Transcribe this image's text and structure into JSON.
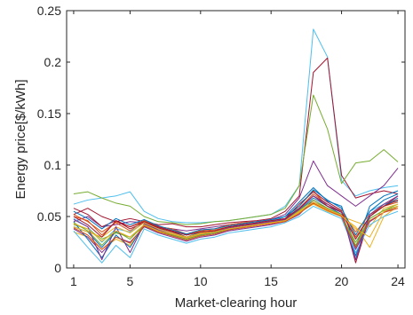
{
  "chart_data": {
    "type": "line",
    "title": "",
    "xlabel": "Market-clearing hour",
    "ylabel": "Energy price[$/kWh]",
    "xlim": [
      0.5,
      24.5
    ],
    "ylim": [
      0,
      0.25
    ],
    "xticks": [
      1,
      5,
      10,
      15,
      20,
      24
    ],
    "xtick_labels": [
      "1",
      "5",
      "10",
      "15",
      "20",
      "24"
    ],
    "yticks": [
      0,
      0.05,
      0.1,
      0.15,
      0.2,
      0.25
    ],
    "ytick_labels": [
      "0",
      "0.05",
      "0.1",
      "0.15",
      "0.2",
      "0.25"
    ],
    "grid": false,
    "legend": "none",
    "x": [
      1,
      2,
      3,
      4,
      5,
      6,
      7,
      8,
      9,
      10,
      11,
      12,
      13,
      14,
      15,
      16,
      17,
      18,
      19,
      20,
      21,
      22,
      23,
      24
    ],
    "series": [
      {
        "color": "#4DBEEE",
        "values": [
          0.062,
          0.066,
          0.068,
          0.07,
          0.074,
          0.055,
          0.048,
          0.045,
          0.044,
          0.044,
          0.045,
          0.046,
          0.048,
          0.05,
          0.052,
          0.06,
          0.08,
          0.232,
          0.205,
          0.085,
          0.07,
          0.075,
          0.078,
          0.08
        ]
      },
      {
        "color": "#A2142F",
        "values": [
          0.052,
          0.058,
          0.05,
          0.045,
          0.048,
          0.045,
          0.042,
          0.043,
          0.04,
          0.04,
          0.042,
          0.044,
          0.045,
          0.046,
          0.048,
          0.055,
          0.07,
          0.19,
          0.204,
          0.09,
          0.068,
          0.072,
          0.075,
          0.072
        ]
      },
      {
        "color": "#77AC30",
        "values": [
          0.072,
          0.074,
          0.068,
          0.063,
          0.06,
          0.05,
          0.045,
          0.044,
          0.042,
          0.043,
          0.045,
          0.046,
          0.048,
          0.05,
          0.052,
          0.058,
          0.08,
          0.168,
          0.135,
          0.082,
          0.102,
          0.104,
          0.115,
          0.103
        ]
      },
      {
        "color": "#7E2F8E",
        "values": [
          0.045,
          0.05,
          0.04,
          0.042,
          0.045,
          0.044,
          0.04,
          0.038,
          0.036,
          0.038,
          0.04,
          0.042,
          0.044,
          0.045,
          0.047,
          0.052,
          0.068,
          0.104,
          0.08,
          0.07,
          0.06,
          0.07,
          0.08,
          0.097
        ]
      },
      {
        "color": "#0072BD",
        "values": [
          0.04,
          0.035,
          0.02,
          0.035,
          0.03,
          0.042,
          0.038,
          0.036,
          0.03,
          0.035,
          0.036,
          0.04,
          0.042,
          0.043,
          0.045,
          0.05,
          0.064,
          0.078,
          0.065,
          0.06,
          0.02,
          0.06,
          0.07,
          0.075
        ]
      },
      {
        "color": "#D95319",
        "values": [
          0.05,
          0.046,
          0.032,
          0.045,
          0.04,
          0.046,
          0.04,
          0.038,
          0.033,
          0.037,
          0.038,
          0.042,
          0.044,
          0.045,
          0.046,
          0.048,
          0.06,
          0.075,
          0.06,
          0.055,
          0.03,
          0.05,
          0.062,
          0.066
        ]
      },
      {
        "color": "#EDB120",
        "values": [
          0.035,
          0.03,
          0.018,
          0.028,
          0.022,
          0.04,
          0.035,
          0.032,
          0.028,
          0.032,
          0.034,
          0.038,
          0.04,
          0.042,
          0.044,
          0.046,
          0.055,
          0.062,
          0.055,
          0.05,
          0.04,
          0.02,
          0.05,
          0.06
        ]
      },
      {
        "color": "#4DBEEE",
        "values": [
          0.048,
          0.04,
          0.025,
          0.038,
          0.035,
          0.044,
          0.038,
          0.034,
          0.03,
          0.034,
          0.036,
          0.04,
          0.042,
          0.044,
          0.046,
          0.05,
          0.058,
          0.07,
          0.062,
          0.055,
          0.01,
          0.055,
          0.062,
          0.065
        ]
      },
      {
        "color": "#A2142F",
        "values": [
          0.058,
          0.052,
          0.04,
          0.046,
          0.038,
          0.044,
          0.039,
          0.035,
          0.03,
          0.034,
          0.035,
          0.04,
          0.042,
          0.043,
          0.044,
          0.048,
          0.062,
          0.074,
          0.064,
          0.056,
          0.005,
          0.05,
          0.06,
          0.07
        ]
      },
      {
        "color": "#77AC30",
        "values": [
          0.042,
          0.038,
          0.028,
          0.034,
          0.03,
          0.04,
          0.036,
          0.032,
          0.03,
          0.033,
          0.035,
          0.038,
          0.04,
          0.042,
          0.044,
          0.046,
          0.054,
          0.064,
          0.058,
          0.05,
          0.025,
          0.048,
          0.056,
          0.062
        ]
      },
      {
        "color": "#7E2F8E",
        "values": [
          0.038,
          0.03,
          0.015,
          0.03,
          0.025,
          0.04,
          0.034,
          0.03,
          0.026,
          0.03,
          0.032,
          0.036,
          0.038,
          0.04,
          0.042,
          0.045,
          0.052,
          0.066,
          0.058,
          0.05,
          0.018,
          0.045,
          0.054,
          0.06
        ]
      },
      {
        "color": "#0072BD",
        "values": [
          0.045,
          0.028,
          0.01,
          0.032,
          0.02,
          0.042,
          0.036,
          0.032,
          0.028,
          0.032,
          0.034,
          0.037,
          0.04,
          0.042,
          0.044,
          0.046,
          0.056,
          0.068,
          0.06,
          0.052,
          0.012,
          0.05,
          0.06,
          0.068
        ]
      },
      {
        "color": "#D95319",
        "values": [
          0.052,
          0.045,
          0.035,
          0.044,
          0.036,
          0.046,
          0.04,
          0.036,
          0.032,
          0.036,
          0.037,
          0.04,
          0.042,
          0.043,
          0.045,
          0.047,
          0.058,
          0.072,
          0.062,
          0.055,
          0.035,
          0.052,
          0.06,
          0.064
        ]
      },
      {
        "color": "#EDB120",
        "values": [
          0.04,
          0.035,
          0.03,
          0.04,
          0.034,
          0.044,
          0.038,
          0.034,
          0.03,
          0.034,
          0.036,
          0.039,
          0.041,
          0.042,
          0.044,
          0.046,
          0.054,
          0.062,
          0.056,
          0.05,
          0.045,
          0.04,
          0.058,
          0.062
        ]
      },
      {
        "color": "#4DBEEE",
        "values": [
          0.036,
          0.02,
          0.005,
          0.022,
          0.01,
          0.038,
          0.032,
          0.028,
          0.024,
          0.028,
          0.03,
          0.034,
          0.036,
          0.038,
          0.04,
          0.044,
          0.05,
          0.06,
          0.054,
          0.048,
          0.015,
          0.042,
          0.05,
          0.055
        ]
      },
      {
        "color": "#A2142F",
        "values": [
          0.05,
          0.042,
          0.03,
          0.046,
          0.04,
          0.045,
          0.04,
          0.036,
          0.032,
          0.035,
          0.036,
          0.04,
          0.042,
          0.044,
          0.046,
          0.048,
          0.058,
          0.07,
          0.06,
          0.054,
          0.028,
          0.05,
          0.06,
          0.066
        ]
      },
      {
        "color": "#77AC30",
        "values": [
          0.044,
          0.036,
          0.022,
          0.036,
          0.028,
          0.042,
          0.036,
          0.032,
          0.028,
          0.032,
          0.034,
          0.038,
          0.04,
          0.042,
          0.044,
          0.046,
          0.056,
          0.066,
          0.058,
          0.052,
          0.022,
          0.048,
          0.056,
          0.06
        ]
      },
      {
        "color": "#7E2F8E",
        "values": [
          0.047,
          0.04,
          0.008,
          0.04,
          0.015,
          0.043,
          0.037,
          0.033,
          0.029,
          0.033,
          0.035,
          0.039,
          0.041,
          0.043,
          0.045,
          0.047,
          0.057,
          0.07,
          0.062,
          0.054,
          0.008,
          0.052,
          0.062,
          0.07
        ]
      },
      {
        "color": "#0072BD",
        "values": [
          0.055,
          0.048,
          0.038,
          0.048,
          0.042,
          0.047,
          0.041,
          0.037,
          0.033,
          0.037,
          0.038,
          0.041,
          0.043,
          0.045,
          0.047,
          0.05,
          0.06,
          0.076,
          0.066,
          0.058,
          0.032,
          0.055,
          0.066,
          0.072
        ]
      },
      {
        "color": "#D95319",
        "values": [
          0.039,
          0.032,
          0.018,
          0.03,
          0.024,
          0.041,
          0.035,
          0.031,
          0.027,
          0.031,
          0.033,
          0.037,
          0.039,
          0.041,
          0.043,
          0.045,
          0.053,
          0.063,
          0.056,
          0.05,
          0.02,
          0.046,
          0.054,
          0.058
        ]
      },
      {
        "color": "#EDB120",
        "values": [
          0.043,
          0.038,
          0.026,
          0.036,
          0.03,
          0.042,
          0.036,
          0.033,
          0.029,
          0.033,
          0.035,
          0.038,
          0.04,
          0.042,
          0.044,
          0.046,
          0.055,
          0.064,
          0.057,
          0.051,
          0.038,
          0.03,
          0.055,
          0.06
        ]
      }
    ]
  }
}
